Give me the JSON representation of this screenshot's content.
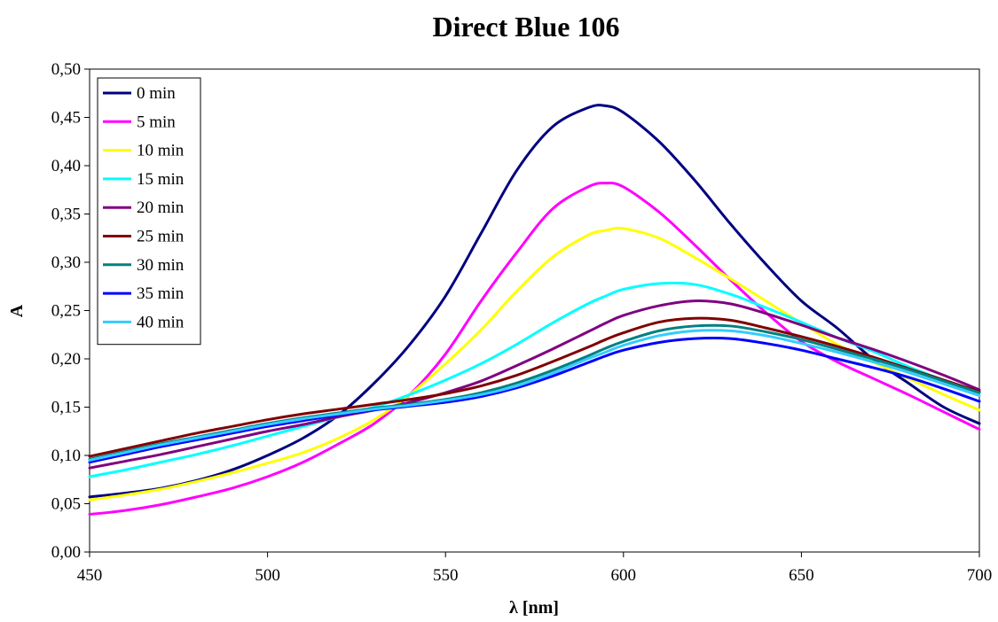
{
  "chart_data": {
    "type": "line",
    "title": "Direct Blue 106",
    "xlabel": "λ [nm]",
    "ylabel": "A",
    "xlim": [
      450,
      700
    ],
    "ylim": [
      0,
      0.5
    ],
    "xticks": [
      450,
      500,
      550,
      600,
      650,
      700
    ],
    "xtick_labels": [
      "450",
      "500",
      "550",
      "600",
      "650",
      "700"
    ],
    "yticks": [
      0,
      0.05,
      0.1,
      0.15,
      0.2,
      0.25,
      0.3,
      0.35,
      0.4,
      0.45,
      0.5
    ],
    "ytick_labels": [
      "0,00",
      "0,05",
      "0,10",
      "0,15",
      "0,20",
      "0,25",
      "0,30",
      "0,35",
      "0,40",
      "0,45",
      "0,50"
    ],
    "grid": false,
    "legend_position": "top-left",
    "x": [
      450,
      460,
      470,
      480,
      490,
      500,
      510,
      520,
      530,
      540,
      550,
      560,
      570,
      580,
      590,
      595,
      600,
      610,
      620,
      630,
      640,
      650,
      660,
      670,
      680,
      690,
      700
    ],
    "series": [
      {
        "name": "0 min",
        "color": "#000080",
        "values": [
          0.057,
          0.061,
          0.066,
          0.074,
          0.085,
          0.1,
          0.118,
          0.142,
          0.175,
          0.215,
          0.265,
          0.33,
          0.395,
          0.44,
          0.46,
          0.462,
          0.455,
          0.425,
          0.385,
          0.34,
          0.298,
          0.26,
          0.232,
          0.2,
          0.175,
          0.15,
          0.133
        ]
      },
      {
        "name": "5 min",
        "color": "#ff00ff",
        "values": [
          0.039,
          0.043,
          0.049,
          0.057,
          0.066,
          0.078,
          0.093,
          0.112,
          0.133,
          0.163,
          0.205,
          0.26,
          0.31,
          0.355,
          0.378,
          0.382,
          0.378,
          0.352,
          0.318,
          0.282,
          0.248,
          0.218,
          0.197,
          0.18,
          0.163,
          0.145,
          0.127
        ]
      },
      {
        "name": "10 min",
        "color": "#ffff00",
        "values": [
          0.054,
          0.059,
          0.065,
          0.073,
          0.082,
          0.092,
          0.103,
          0.118,
          0.137,
          0.163,
          0.195,
          0.23,
          0.27,
          0.305,
          0.328,
          0.333,
          0.335,
          0.325,
          0.305,
          0.283,
          0.26,
          0.237,
          0.215,
          0.197,
          0.18,
          0.163,
          0.147
        ]
      },
      {
        "name": "15 min",
        "color": "#00ffff",
        "values": [
          0.078,
          0.085,
          0.093,
          0.101,
          0.11,
          0.12,
          0.13,
          0.14,
          0.15,
          0.163,
          0.178,
          0.195,
          0.215,
          0.237,
          0.257,
          0.265,
          0.272,
          0.278,
          0.277,
          0.267,
          0.253,
          0.238,
          0.222,
          0.208,
          0.192,
          0.178,
          0.165
        ]
      },
      {
        "name": "20 min",
        "color": "#800080",
        "values": [
          0.087,
          0.094,
          0.101,
          0.109,
          0.117,
          0.125,
          0.132,
          0.14,
          0.147,
          0.155,
          0.165,
          0.177,
          0.193,
          0.21,
          0.228,
          0.237,
          0.245,
          0.255,
          0.26,
          0.257,
          0.247,
          0.235,
          0.222,
          0.21,
          0.197,
          0.183,
          0.168
        ]
      },
      {
        "name": "25 min",
        "color": "#800000",
        "values": [
          0.099,
          0.107,
          0.115,
          0.123,
          0.13,
          0.137,
          0.143,
          0.148,
          0.153,
          0.158,
          0.164,
          0.172,
          0.183,
          0.197,
          0.212,
          0.22,
          0.227,
          0.238,
          0.242,
          0.24,
          0.232,
          0.223,
          0.213,
          0.202,
          0.19,
          0.178,
          0.166
        ]
      },
      {
        "name": "30 min",
        "color": "#008080",
        "values": [
          0.096,
          0.104,
          0.112,
          0.119,
          0.126,
          0.133,
          0.139,
          0.144,
          0.149,
          0.153,
          0.158,
          0.165,
          0.175,
          0.188,
          0.203,
          0.211,
          0.218,
          0.229,
          0.234,
          0.234,
          0.228,
          0.22,
          0.21,
          0.2,
          0.189,
          0.177,
          0.165
        ]
      },
      {
        "name": "35 min",
        "color": "#0000ff",
        "values": [
          0.093,
          0.101,
          0.109,
          0.116,
          0.123,
          0.13,
          0.136,
          0.142,
          0.147,
          0.151,
          0.155,
          0.161,
          0.17,
          0.182,
          0.196,
          0.203,
          0.209,
          0.217,
          0.221,
          0.221,
          0.216,
          0.209,
          0.2,
          0.191,
          0.181,
          0.169,
          0.156
        ]
      },
      {
        "name": "40 min",
        "color": "#33ccff",
        "values": [
          0.095,
          0.103,
          0.111,
          0.118,
          0.125,
          0.132,
          0.138,
          0.143,
          0.148,
          0.152,
          0.157,
          0.163,
          0.172,
          0.185,
          0.2,
          0.207,
          0.214,
          0.224,
          0.229,
          0.229,
          0.224,
          0.216,
          0.207,
          0.197,
          0.186,
          0.174,
          0.162
        ]
      }
    ]
  }
}
